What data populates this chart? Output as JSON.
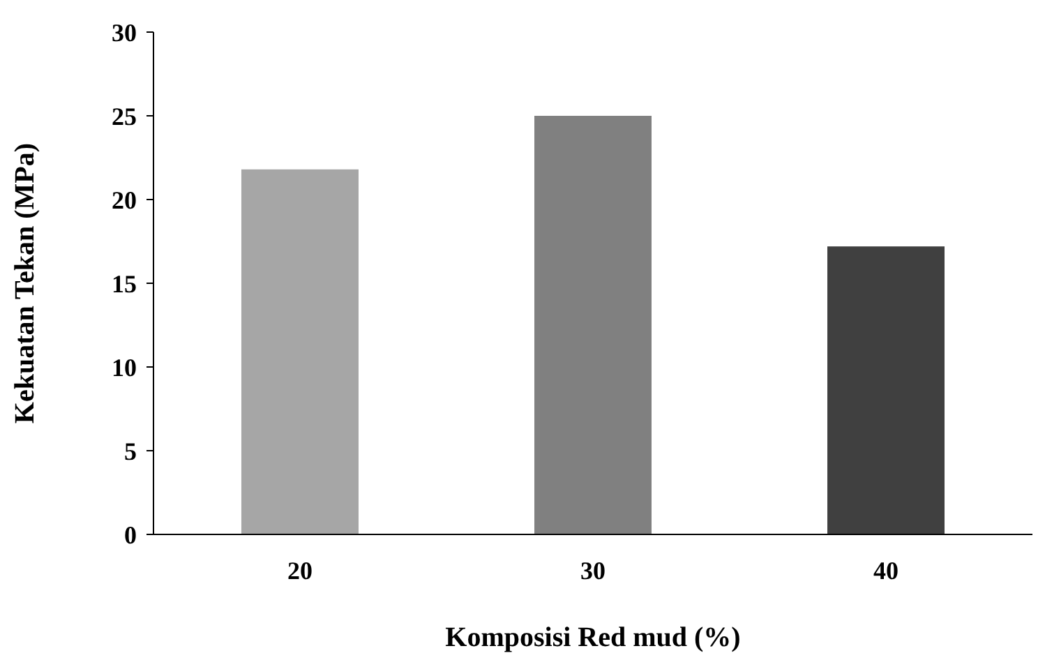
{
  "chart_data": {
    "type": "bar",
    "xlabel": "Komposisi Red mud (%)",
    "ylabel": "Kekuatan Tekan (MPa)",
    "categories": [
      "20",
      "30",
      "40"
    ],
    "values": [
      21.8,
      25.0,
      17.2
    ],
    "colors": [
      "#a6a6a6",
      "#808080",
      "#404040"
    ],
    "ylim": [
      0,
      30
    ],
    "yticks": [
      0,
      5,
      10,
      15,
      20,
      25,
      30
    ],
    "grid": false
  }
}
